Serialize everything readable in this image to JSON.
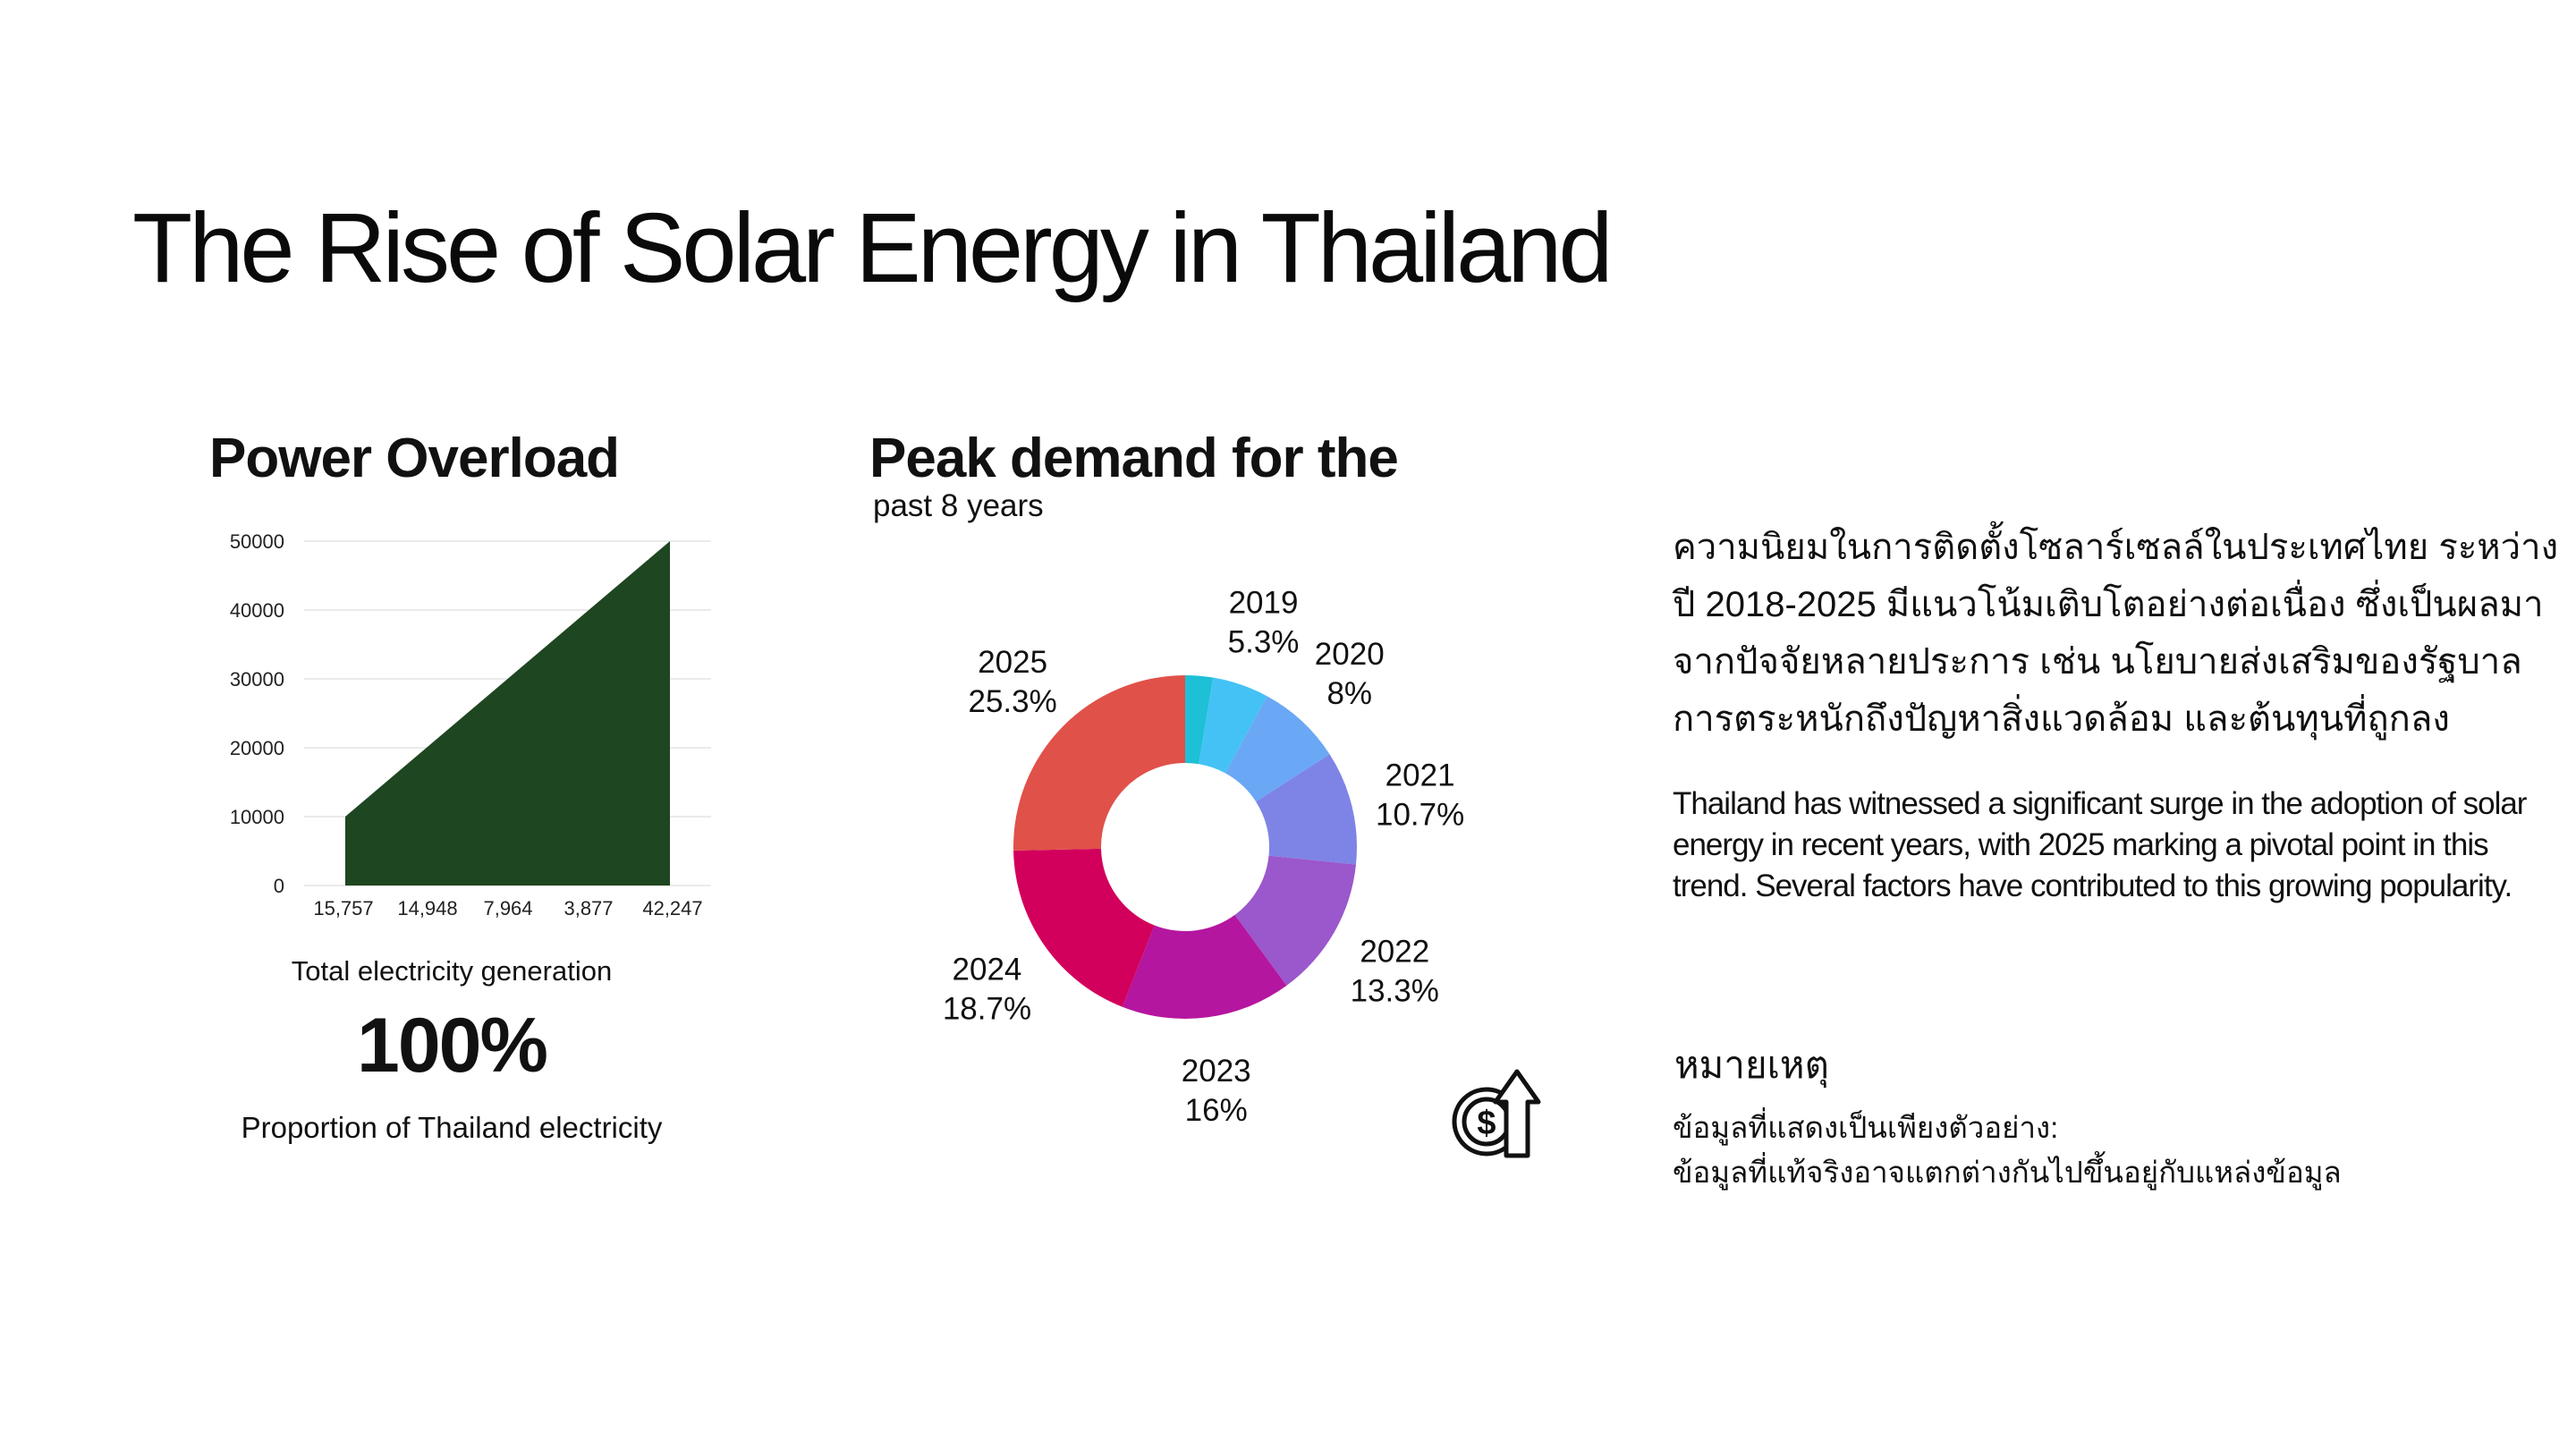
{
  "title": "The Rise of Solar Energy in Thailand",
  "area_panel": {
    "title": "Power Overload",
    "generation_label": "Total electricity generation",
    "big_value": "100%",
    "proportion_label": "Proportion of Thailand electricity"
  },
  "donut_panel": {
    "title": "Peak demand for the",
    "subtitle": "past 8 years"
  },
  "chart_data": [
    {
      "type": "area",
      "title": "Power Overload",
      "categories": [
        "15,757",
        "14,948",
        "7,964",
        "3,877",
        "42,247"
      ],
      "y_ticks": [
        "0",
        "10000",
        "20000",
        "30000",
        "40000",
        "50000"
      ],
      "ylim": [
        0,
        50000
      ],
      "series": [
        {
          "values": [
            10000,
            20000,
            30000,
            40000,
            50000
          ]
        }
      ],
      "color": "#1e4620",
      "grid": true
    },
    {
      "type": "pie",
      "style": "donut",
      "title": "Peak demand for the past 8 years",
      "slices": [
        {
          "label": "",
          "value": 2.6,
          "percent_label": "",
          "color": "#1ec0d6"
        },
        {
          "label": "2019",
          "value": 5.3,
          "percent_label": "5.3%",
          "color": "#45c2f5"
        },
        {
          "label": "2020",
          "value": 8,
          "percent_label": "8%",
          "color": "#6aa8f5"
        },
        {
          "label": "2021",
          "value": 10.7,
          "percent_label": "10.7%",
          "color": "#7e84e6"
        },
        {
          "label": "2022",
          "value": 13.3,
          "percent_label": "13.3%",
          "color": "#9b57cc"
        },
        {
          "label": "2023",
          "value": 16,
          "percent_label": "16%",
          "color": "#b5169f"
        },
        {
          "label": "2024",
          "value": 18.7,
          "percent_label": "18.7%",
          "color": "#d2005c"
        },
        {
          "label": "2025",
          "value": 25.3,
          "percent_label": "25.3%",
          "color": "#e05149"
        }
      ]
    }
  ],
  "thai_paragraph": "ความนิยมในการติดตั้งโซลาร์เซลล์ในประเทศไทย ระหว่างปี 2018-2025 มีแนวโน้มเติบโตอย่างต่อเนื่อง ซึ่งเป็นผลมาจากปัจจัยหลายประการ เช่น นโยบายส่งเสริมของรัฐบาล การตระหนักถึงปัญหาสิ่งแวดล้อม และต้นทุนที่ถูกลง",
  "english_paragraph": "Thailand has witnessed a significant surge in the adoption of solar energy in recent years, with 2025 marking a pivotal point in this trend. Several factors have contributed to this growing popularity.",
  "note": {
    "title": "หมายเหตุ",
    "line1": "ข้อมูลที่แสดงเป็นเพียงตัวอย่าง:",
    "line2": "ข้อมูลที่แท้จริงอาจแตกต่างกันไปขึ้นอยู่กับแหล่งข้อมูล"
  },
  "icons": {
    "money_growth": "dollar-coin-up-arrow-icon"
  }
}
